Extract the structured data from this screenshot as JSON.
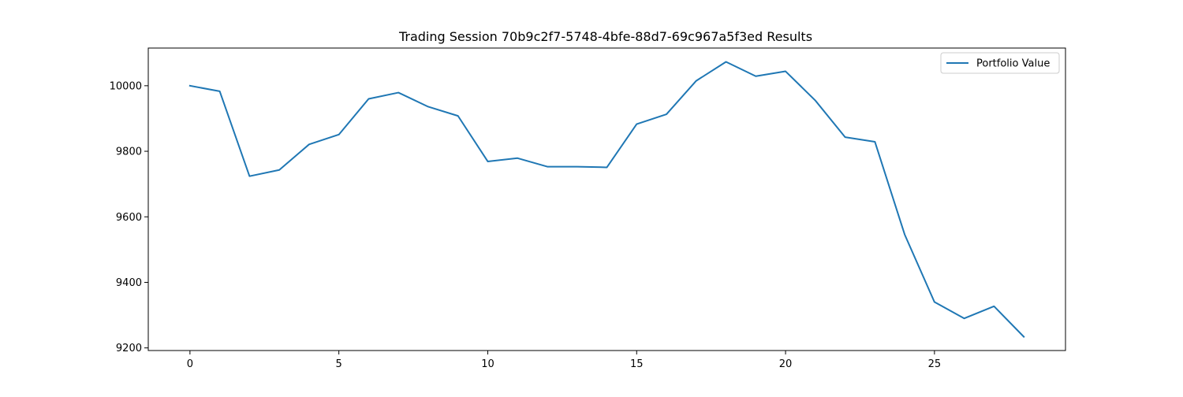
{
  "chart_data": {
    "type": "line",
    "title": "Trading Session 70b9c2f7-5748-4bfe-88d7-69c967a5f3ed Results",
    "xlabel": "",
    "ylabel": "",
    "xlim": [
      -1.4,
      29.4
    ],
    "ylim": [
      9192,
      10115
    ],
    "x_ticks": [
      0,
      5,
      10,
      15,
      20,
      25
    ],
    "y_ticks": [
      9200,
      9400,
      9600,
      9800,
      10000
    ],
    "grid": false,
    "legend_position": "top-right",
    "series": [
      {
        "name": "Portfolio Value",
        "color": "#1f77b4",
        "x": [
          0,
          1,
          2,
          3,
          4,
          5,
          6,
          7,
          8,
          9,
          10,
          11,
          12,
          13,
          14,
          15,
          16,
          17,
          18,
          19,
          20,
          21,
          22,
          23,
          24,
          25,
          26,
          27,
          28
        ],
        "values": [
          10000,
          9983,
          9724,
          9743,
          9821,
          9851,
          9960,
          9979,
          9936,
          9908,
          9769,
          9779,
          9753,
          9753,
          9751,
          9883,
          9913,
          10015,
          10073,
          10029,
          10044,
          9955,
          9843,
          9829,
          9546,
          9340,
          9290,
          9327,
          9234
        ]
      }
    ]
  }
}
